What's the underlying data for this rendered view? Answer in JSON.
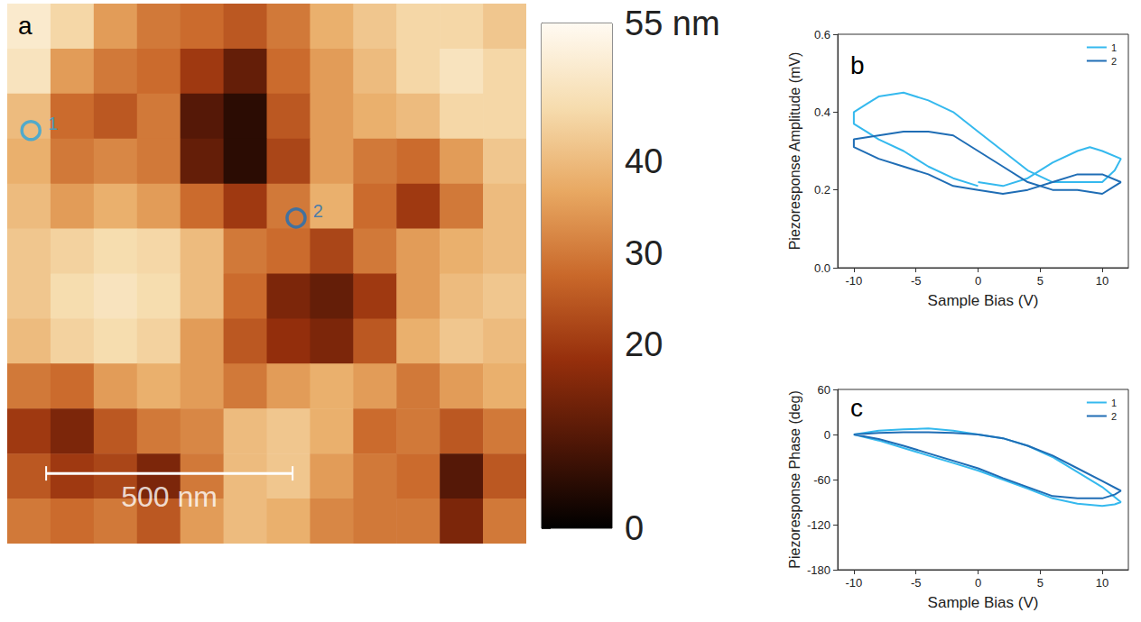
{
  "chart_data": [
    {
      "type": "heatmap",
      "panel_label": "a",
      "tick_labels": false,
      "xlim": [
        0,
        1053
      ],
      "ylim": [
        0,
        1098
      ],
      "cells": [
        [
          50,
          45,
          35,
          30,
          28,
          25,
          30,
          38,
          42,
          45,
          45,
          42
        ],
        [
          48,
          35,
          30,
          28,
          20,
          12,
          28,
          35,
          40,
          45,
          48,
          45
        ],
        [
          40,
          28,
          25,
          30,
          10,
          5,
          25,
          35,
          38,
          40,
          45,
          45
        ],
        [
          38,
          30,
          32,
          30,
          12,
          5,
          22,
          35,
          30,
          28,
          35,
          42
        ],
        [
          40,
          35,
          38,
          35,
          28,
          20,
          30,
          38,
          28,
          20,
          30,
          40
        ],
        [
          42,
          44,
          46,
          45,
          40,
          30,
          28,
          22,
          30,
          35,
          38,
          40
        ],
        [
          42,
          46,
          48,
          46,
          40,
          28,
          15,
          12,
          20,
          35,
          40,
          42
        ],
        [
          40,
          44,
          46,
          44,
          35,
          25,
          18,
          15,
          25,
          38,
          42,
          40
        ],
        [
          30,
          28,
          35,
          38,
          35,
          30,
          35,
          38,
          35,
          30,
          35,
          38
        ],
        [
          20,
          15,
          25,
          30,
          32,
          40,
          42,
          38,
          28,
          30,
          25,
          30
        ],
        [
          25,
          20,
          22,
          15,
          30,
          40,
          42,
          35,
          30,
          28,
          10,
          25
        ],
        [
          30,
          28,
          30,
          25,
          35,
          40,
          38,
          32,
          30,
          30,
          15,
          30
        ]
      ],
      "colorbar": {
        "range": [
          0,
          55
        ],
        "ticks": [
          0,
          20,
          30,
          40,
          {
            "value": 55,
            "label": "55 nm"
          }
        ]
      },
      "scale_bar": {
        "length": 500,
        "label": "500 nm"
      },
      "markers": [
        {
          "label": "1",
          "x": 48,
          "y": 258,
          "color": "#2aa6df"
        },
        {
          "label": "2",
          "x": 586,
          "y": 436,
          "color": "#1e6fb8"
        }
      ]
    },
    {
      "type": "line",
      "panel_label": "b",
      "x_label": "Sample Bias (V)",
      "y_label": "Piezoresponse Amplitude (mV)",
      "xlim": [
        -11.3,
        12.1
      ],
      "xticks": [
        -10,
        -5,
        0,
        5,
        10
      ],
      "ylim": [
        0,
        0.6
      ],
      "yticks": [
        {
          "value": 0,
          "label": "0.0"
        },
        0.2,
        0.4,
        0.6
      ],
      "legend": "top right",
      "series": [
        {
          "name": "1",
          "color": "#35b9ee",
          "x": [
            0,
            2,
            4,
            6,
            8,
            9,
            10,
            11.5,
            11,
            10,
            8,
            6,
            4,
            2,
            0,
            -2,
            -4,
            -6,
            -8,
            -9,
            -10,
            -10,
            -9,
            -8,
            -6,
            -4,
            -2,
            0
          ],
          "values": [
            0.22,
            0.21,
            0.23,
            0.27,
            0.3,
            0.31,
            0.3,
            0.28,
            0.25,
            0.22,
            0.22,
            0.22,
            0.25,
            0.3,
            0.35,
            0.4,
            0.43,
            0.45,
            0.44,
            0.42,
            0.4,
            0.37,
            0.35,
            0.33,
            0.3,
            0.26,
            0.23,
            0.21
          ]
        },
        {
          "name": "2",
          "color": "#1f6db5",
          "x": [
            0,
            2,
            4,
            6,
            8,
            10,
            11.5,
            11,
            10,
            8,
            6,
            4,
            2,
            0,
            -2,
            -4,
            -6,
            -8,
            -10,
            -10,
            -8,
            -6,
            -4,
            -2,
            0
          ],
          "values": [
            0.2,
            0.19,
            0.2,
            0.22,
            0.24,
            0.24,
            0.22,
            0.21,
            0.19,
            0.2,
            0.2,
            0.22,
            0.26,
            0.3,
            0.34,
            0.35,
            0.35,
            0.34,
            0.33,
            0.31,
            0.28,
            0.26,
            0.24,
            0.21,
            0.2
          ]
        }
      ]
    },
    {
      "type": "line",
      "panel_label": "c",
      "x_label": "Sample Bias (V)",
      "y_label": "Piezoresponse Phase (deg)",
      "xlim": [
        -11.3,
        12.1
      ],
      "xticks": [
        -10,
        -5,
        0,
        5,
        10
      ],
      "ylim": [
        -180,
        60
      ],
      "yticks": [
        -180,
        -120,
        -60,
        0,
        60
      ],
      "legend": "top right",
      "series": [
        {
          "name": "1",
          "color": "#35b9ee",
          "x": [
            0,
            2,
            4,
            6,
            8,
            10,
            11.5,
            11,
            10,
            8,
            6,
            4,
            2,
            0,
            -2,
            -4,
            -6,
            -8,
            -10,
            -8,
            -6,
            -4,
            -2,
            0
          ],
          "values": [
            0,
            -5,
            -15,
            -30,
            -50,
            -70,
            -90,
            -93,
            -95,
            -92,
            -85,
            -72,
            -60,
            -48,
            -38,
            -28,
            -18,
            -8,
            0,
            5,
            7,
            8,
            5,
            0
          ]
        },
        {
          "name": "2",
          "color": "#1f6db5",
          "x": [
            0,
            2,
            4,
            6,
            8,
            10,
            11.5,
            11,
            10,
            8,
            6,
            4,
            2,
            0,
            -2,
            -4,
            -6,
            -8,
            -10,
            -8,
            -6,
            -4,
            -2,
            0
          ],
          "values": [
            0,
            -5,
            -15,
            -28,
            -45,
            -62,
            -75,
            -80,
            -85,
            -85,
            -82,
            -70,
            -58,
            -45,
            -35,
            -25,
            -15,
            -6,
            0,
            2,
            3,
            3,
            2,
            0
          ]
        }
      ]
    }
  ]
}
